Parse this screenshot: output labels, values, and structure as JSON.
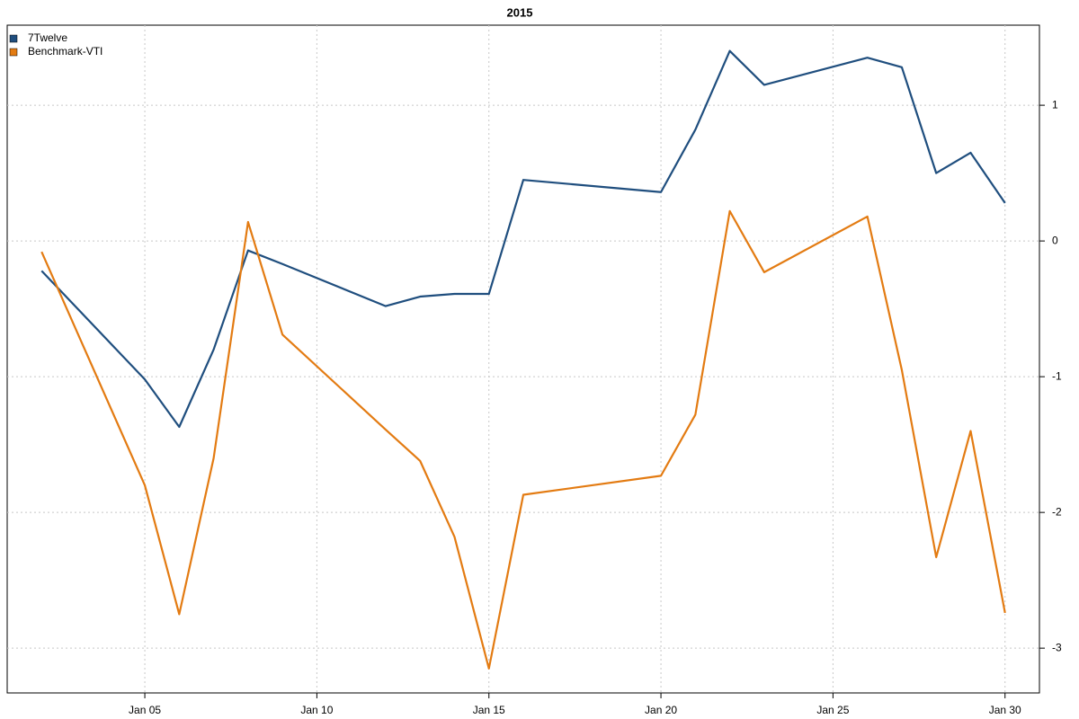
{
  "chart_data": {
    "type": "line",
    "title": "2015",
    "x": [
      "Jan 02",
      "Jan 05",
      "Jan 06",
      "Jan 07",
      "Jan 08",
      "Jan 09",
      "Jan 12",
      "Jan 13",
      "Jan 14",
      "Jan 15",
      "Jan 16",
      "Jan 20",
      "Jan 21",
      "Jan 22",
      "Jan 23",
      "Jan 26",
      "Jan 27",
      "Jan 28",
      "Jan 29",
      "Jan 30"
    ],
    "series": [
      {
        "name": "7Twelve",
        "color": "#1f4e7e",
        "values": [
          -0.22,
          -1.02,
          -1.37,
          -0.8,
          -0.07,
          -0.17,
          -0.48,
          -0.41,
          -0.39,
          -0.39,
          0.45,
          0.36,
          0.82,
          1.4,
          1.15,
          1.35,
          1.28,
          0.5,
          0.65,
          0.28
        ]
      },
      {
        "name": "Benchmark-VTI",
        "color": "#e37b12",
        "values": [
          -0.08,
          -1.8,
          -2.75,
          -1.6,
          0.14,
          -0.69,
          -1.39,
          -1.62,
          -2.18,
          -3.15,
          -1.87,
          -1.73,
          -1.28,
          0.22,
          -0.23,
          0.18,
          -0.95,
          -2.33,
          -1.4,
          -2.74
        ]
      }
    ],
    "xlim": [
      "Jan 01",
      "Jan 31"
    ],
    "xticks": [
      "Jan 05",
      "Jan 10",
      "Jan 15",
      "Jan 20",
      "Jan 25",
      "Jan 30"
    ],
    "ylim": [
      -3.33,
      1.59
    ],
    "yticks": [
      -3,
      -2,
      -1,
      0,
      1
    ],
    "grid": true,
    "legend": "top-left",
    "y_axis_side": "right"
  }
}
